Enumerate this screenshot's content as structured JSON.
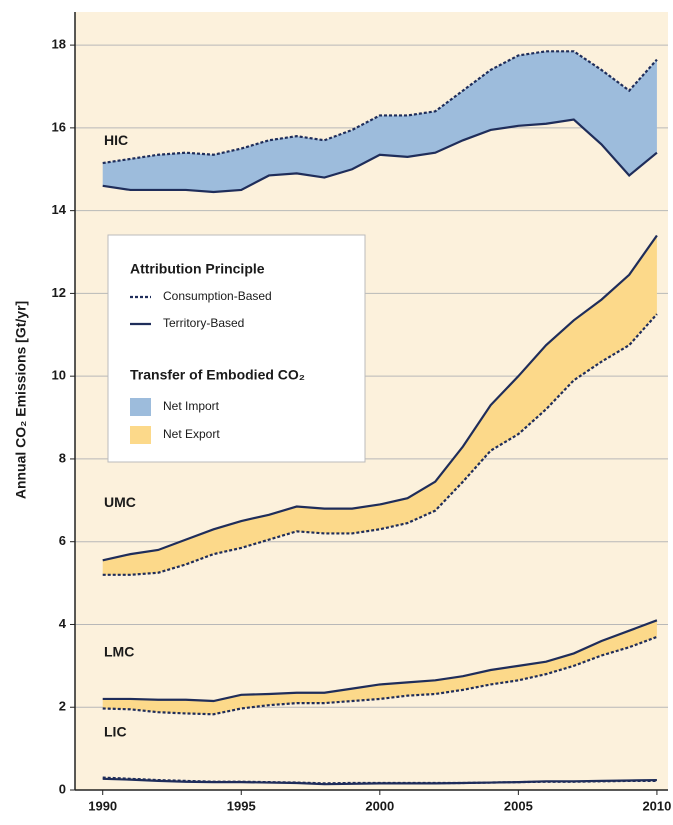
{
  "chart_data": {
    "type": "line",
    "ylabel": "Annual CO₂ Emissions [Gt/yr]",
    "x": [
      1990,
      1991,
      1992,
      1993,
      1994,
      1995,
      1996,
      1997,
      1998,
      1999,
      2000,
      2001,
      2002,
      2003,
      2004,
      2005,
      2006,
      2007,
      2008,
      2009,
      2010
    ],
    "xlim": [
      1989,
      2010.4
    ],
    "xticks": [
      1990,
      1995,
      2000,
      2005,
      2010
    ],
    "ylim": [
      0,
      18.8
    ],
    "yticks": [
      0,
      2,
      4,
      6,
      8,
      10,
      12,
      14,
      16,
      18
    ],
    "grid": true,
    "line_color": "#1f2d5a",
    "series": [
      {
        "name": "HIC",
        "color": "#9dbcdc",
        "consumption": [
          15.15,
          15.25,
          15.35,
          15.4,
          15.35,
          15.5,
          15.7,
          15.8,
          15.7,
          15.95,
          16.3,
          16.3,
          16.4,
          16.9,
          17.4,
          17.75,
          17.85,
          17.85,
          17.4,
          16.9,
          17.65
        ],
        "territory": [
          14.6,
          14.5,
          14.5,
          14.5,
          14.45,
          14.5,
          14.85,
          14.9,
          14.8,
          15.0,
          15.35,
          15.3,
          15.4,
          15.7,
          15.95,
          16.05,
          16.1,
          16.2,
          15.6,
          14.85,
          15.4
        ]
      },
      {
        "name": "UMC",
        "color": "#fcd98a",
        "consumption": [
          5.2,
          5.2,
          5.25,
          5.45,
          5.7,
          5.85,
          6.05,
          6.25,
          6.2,
          6.2,
          6.3,
          6.45,
          6.75,
          7.45,
          8.2,
          8.6,
          9.2,
          9.9,
          10.35,
          10.75,
          11.5
        ],
        "territory": [
          5.55,
          5.7,
          5.8,
          6.05,
          6.3,
          6.5,
          6.65,
          6.85,
          6.8,
          6.8,
          6.9,
          7.05,
          7.45,
          8.3,
          9.3,
          10.0,
          10.75,
          11.35,
          11.85,
          12.45,
          13.4
        ]
      },
      {
        "name": "LMC",
        "color": "#fcd98a",
        "consumption": [
          1.97,
          1.95,
          1.88,
          1.85,
          1.83,
          1.97,
          2.05,
          2.1,
          2.1,
          2.15,
          2.2,
          2.28,
          2.32,
          2.42,
          2.55,
          2.65,
          2.8,
          3.0,
          3.25,
          3.45,
          3.7
        ],
        "territory": [
          2.2,
          2.2,
          2.18,
          2.18,
          2.15,
          2.3,
          2.32,
          2.35,
          2.35,
          2.45,
          2.55,
          2.6,
          2.65,
          2.75,
          2.9,
          3.0,
          3.1,
          3.3,
          3.6,
          3.85,
          4.1
        ]
      },
      {
        "name": "LIC",
        "color": "#fcd98a",
        "consumption": [
          0.3,
          0.27,
          0.24,
          0.22,
          0.2,
          0.2,
          0.19,
          0.18,
          0.16,
          0.17,
          0.17,
          0.17,
          0.17,
          0.17,
          0.18,
          0.19,
          0.2,
          0.2,
          0.21,
          0.22,
          0.22
        ],
        "territory": [
          0.27,
          0.25,
          0.22,
          0.2,
          0.19,
          0.19,
          0.18,
          0.17,
          0.14,
          0.15,
          0.16,
          0.16,
          0.16,
          0.17,
          0.18,
          0.19,
          0.21,
          0.21,
          0.22,
          0.23,
          0.24
        ]
      }
    ],
    "legend": {
      "attribution_title": "Attribution Principle",
      "attribution": [
        {
          "name": "Consumption-Based",
          "style": "dashed"
        },
        {
          "name": "Territory-Based",
          "style": "solid"
        }
      ],
      "transfer_title": "Transfer of Embodied CO₂",
      "transfer": [
        {
          "name": "Net Import",
          "color": "#9dbcdc"
        },
        {
          "name": "Net Export",
          "color": "#fcd98a"
        }
      ]
    }
  }
}
